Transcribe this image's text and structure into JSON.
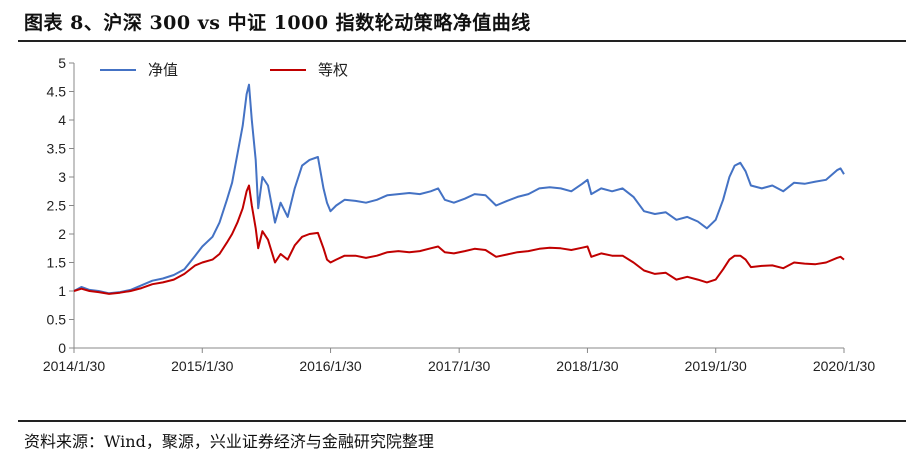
{
  "header": {
    "title": "图表 8、沪深 300 vs 中证 1000 指数轮动策略净值曲线"
  },
  "footer": {
    "source": "资料来源：Wind，聚源，兴业证券经济与金融研究院整理"
  },
  "chart_data": {
    "type": "line",
    "title": "",
    "xlabel": "",
    "ylabel": "",
    "ylim": [
      0,
      5
    ],
    "yticks": [
      "0",
      "0.5",
      "1",
      "1.5",
      "2",
      "2.5",
      "3",
      "3.5",
      "4",
      "4.5",
      "5"
    ],
    "xticks": [
      "2014/1/30",
      "2015/1/30",
      "2016/1/30",
      "2017/1/30",
      "2018/1/30",
      "2019/1/30",
      "2020/1/30"
    ],
    "xlim": [
      "2014/1/30",
      "2020/1/30"
    ],
    "grid": false,
    "legend_position": "top-left",
    "series": [
      {
        "name": "净值",
        "color": "#4472C4",
        "points": [
          [
            "2014/1/30",
            1.0
          ],
          [
            "2014/2/20",
            1.07
          ],
          [
            "2014/3/15",
            1.02
          ],
          [
            "2014/4/10",
            1.0
          ],
          [
            "2014/5/10",
            0.96
          ],
          [
            "2014/6/10",
            0.98
          ],
          [
            "2014/7/10",
            1.02
          ],
          [
            "2014/8/10",
            1.1
          ],
          [
            "2014/9/10",
            1.18
          ],
          [
            "2014/10/10",
            1.22
          ],
          [
            "2014/11/10",
            1.28
          ],
          [
            "2014/12/10",
            1.38
          ],
          [
            "2015/1/10",
            1.62
          ],
          [
            "2015/1/30",
            1.78
          ],
          [
            "2015/2/28",
            1.95
          ],
          [
            "2015/3/20",
            2.2
          ],
          [
            "2015/4/10",
            2.6
          ],
          [
            "2015/4/25",
            2.9
          ],
          [
            "2015/5/10",
            3.4
          ],
          [
            "2015/5/25",
            3.9
          ],
          [
            "2015/6/5",
            4.45
          ],
          [
            "2015/6/12",
            4.62
          ],
          [
            "2015/6/20",
            4.0
          ],
          [
            "2015/7/1",
            3.3
          ],
          [
            "2015/7/8",
            2.45
          ],
          [
            "2015/7/20",
            3.0
          ],
          [
            "2015/8/5",
            2.85
          ],
          [
            "2015/8/25",
            2.2
          ],
          [
            "2015/9/10",
            2.55
          ],
          [
            "2015/9/30",
            2.3
          ],
          [
            "2015/10/20",
            2.8
          ],
          [
            "2015/11/10",
            3.2
          ],
          [
            "2015/12/1",
            3.3
          ],
          [
            "2015/12/25",
            3.35
          ],
          [
            "2016/1/10",
            2.8
          ],
          [
            "2016/1/20",
            2.55
          ],
          [
            "2016/1/30",
            2.4
          ],
          [
            "2016/2/15",
            2.5
          ],
          [
            "2016/3/10",
            2.6
          ],
          [
            "2016/4/10",
            2.58
          ],
          [
            "2016/5/10",
            2.55
          ],
          [
            "2016/6/10",
            2.6
          ],
          [
            "2016/7/10",
            2.68
          ],
          [
            "2016/8/10",
            2.7
          ],
          [
            "2016/9/10",
            2.72
          ],
          [
            "2016/10/10",
            2.7
          ],
          [
            "2016/11/10",
            2.75
          ],
          [
            "2016/12/1",
            2.8
          ],
          [
            "2016/12/20",
            2.6
          ],
          [
            "2017/1/15",
            2.55
          ],
          [
            "2017/2/15",
            2.62
          ],
          [
            "2017/3/15",
            2.7
          ],
          [
            "2017/4/15",
            2.68
          ],
          [
            "2017/5/15",
            2.5
          ],
          [
            "2017/6/15",
            2.58
          ],
          [
            "2017/7/15",
            2.65
          ],
          [
            "2017/8/15",
            2.7
          ],
          [
            "2017/9/15",
            2.8
          ],
          [
            "2017/10/15",
            2.82
          ],
          [
            "2017/11/15",
            2.8
          ],
          [
            "2017/12/15",
            2.75
          ],
          [
            "2018/1/15",
            2.88
          ],
          [
            "2018/1/30",
            2.95
          ],
          [
            "2018/2/10",
            2.7
          ],
          [
            "2018/3/10",
            2.8
          ],
          [
            "2018/4/10",
            2.75
          ],
          [
            "2018/5/10",
            2.8
          ],
          [
            "2018/6/10",
            2.65
          ],
          [
            "2018/7/10",
            2.4
          ],
          [
            "2018/8/10",
            2.35
          ],
          [
            "2018/9/10",
            2.38
          ],
          [
            "2018/10/10",
            2.25
          ],
          [
            "2018/11/10",
            2.3
          ],
          [
            "2018/12/10",
            2.22
          ],
          [
            "2019/1/5",
            2.1
          ],
          [
            "2019/1/30",
            2.25
          ],
          [
            "2019/2/20",
            2.6
          ],
          [
            "2019/3/10",
            3.0
          ],
          [
            "2019/3/25",
            3.2
          ],
          [
            "2019/4/10",
            3.25
          ],
          [
            "2019/4/25",
            3.1
          ],
          [
            "2019/5/10",
            2.85
          ],
          [
            "2019/6/10",
            2.8
          ],
          [
            "2019/7/10",
            2.85
          ],
          [
            "2019/8/10",
            2.75
          ],
          [
            "2019/9/10",
            2.9
          ],
          [
            "2019/10/10",
            2.88
          ],
          [
            "2019/11/10",
            2.92
          ],
          [
            "2019/12/10",
            2.95
          ],
          [
            "2020/1/10",
            3.12
          ],
          [
            "2020/1/20",
            3.15
          ],
          [
            "2020/1/30",
            3.05
          ]
        ]
      },
      {
        "name": "等权",
        "color": "#C00000",
        "points": [
          [
            "2014/1/30",
            1.0
          ],
          [
            "2014/2/20",
            1.04
          ],
          [
            "2014/3/15",
            1.0
          ],
          [
            "2014/4/10",
            0.98
          ],
          [
            "2014/5/10",
            0.95
          ],
          [
            "2014/6/10",
            0.97
          ],
          [
            "2014/7/10",
            1.0
          ],
          [
            "2014/8/10",
            1.05
          ],
          [
            "2014/9/10",
            1.12
          ],
          [
            "2014/10/10",
            1.15
          ],
          [
            "2014/11/10",
            1.2
          ],
          [
            "2014/12/10",
            1.3
          ],
          [
            "2015/1/10",
            1.45
          ],
          [
            "2015/1/30",
            1.5
          ],
          [
            "2015/2/28",
            1.55
          ],
          [
            "2015/3/20",
            1.65
          ],
          [
            "2015/4/10",
            1.85
          ],
          [
            "2015/4/25",
            2.0
          ],
          [
            "2015/5/10",
            2.2
          ],
          [
            "2015/5/25",
            2.45
          ],
          [
            "2015/6/5",
            2.75
          ],
          [
            "2015/6/12",
            2.85
          ],
          [
            "2015/6/20",
            2.5
          ],
          [
            "2015/7/1",
            2.1
          ],
          [
            "2015/7/8",
            1.75
          ],
          [
            "2015/7/20",
            2.05
          ],
          [
            "2015/8/5",
            1.9
          ],
          [
            "2015/8/25",
            1.5
          ],
          [
            "2015/9/10",
            1.65
          ],
          [
            "2015/9/30",
            1.55
          ],
          [
            "2015/10/20",
            1.8
          ],
          [
            "2015/11/10",
            1.95
          ],
          [
            "2015/12/1",
            2.0
          ],
          [
            "2015/12/25",
            2.02
          ],
          [
            "2016/1/10",
            1.75
          ],
          [
            "2016/1/20",
            1.55
          ],
          [
            "2016/1/30",
            1.5
          ],
          [
            "2016/2/15",
            1.55
          ],
          [
            "2016/3/10",
            1.62
          ],
          [
            "2016/4/10",
            1.62
          ],
          [
            "2016/5/10",
            1.58
          ],
          [
            "2016/6/10",
            1.62
          ],
          [
            "2016/7/10",
            1.68
          ],
          [
            "2016/8/10",
            1.7
          ],
          [
            "2016/9/10",
            1.68
          ],
          [
            "2016/10/10",
            1.7
          ],
          [
            "2016/11/10",
            1.75
          ],
          [
            "2016/12/1",
            1.78
          ],
          [
            "2016/12/20",
            1.68
          ],
          [
            "2017/1/15",
            1.66
          ],
          [
            "2017/2/15",
            1.7
          ],
          [
            "2017/3/15",
            1.74
          ],
          [
            "2017/4/15",
            1.72
          ],
          [
            "2017/5/15",
            1.6
          ],
          [
            "2017/6/15",
            1.64
          ],
          [
            "2017/7/15",
            1.68
          ],
          [
            "2017/8/15",
            1.7
          ],
          [
            "2017/9/15",
            1.74
          ],
          [
            "2017/10/15",
            1.76
          ],
          [
            "2017/11/15",
            1.75
          ],
          [
            "2017/12/15",
            1.72
          ],
          [
            "2018/1/15",
            1.76
          ],
          [
            "2018/1/30",
            1.78
          ],
          [
            "2018/2/10",
            1.6
          ],
          [
            "2018/3/10",
            1.66
          ],
          [
            "2018/4/10",
            1.62
          ],
          [
            "2018/5/10",
            1.62
          ],
          [
            "2018/6/10",
            1.5
          ],
          [
            "2018/7/10",
            1.36
          ],
          [
            "2018/8/10",
            1.3
          ],
          [
            "2018/9/10",
            1.32
          ],
          [
            "2018/10/10",
            1.2
          ],
          [
            "2018/11/10",
            1.25
          ],
          [
            "2018/12/10",
            1.2
          ],
          [
            "2019/1/5",
            1.15
          ],
          [
            "2019/1/30",
            1.2
          ],
          [
            "2019/2/20",
            1.38
          ],
          [
            "2019/3/10",
            1.55
          ],
          [
            "2019/3/25",
            1.62
          ],
          [
            "2019/4/10",
            1.62
          ],
          [
            "2019/4/25",
            1.55
          ],
          [
            "2019/5/10",
            1.42
          ],
          [
            "2019/6/10",
            1.44
          ],
          [
            "2019/7/10",
            1.45
          ],
          [
            "2019/8/10",
            1.4
          ],
          [
            "2019/9/10",
            1.5
          ],
          [
            "2019/10/10",
            1.48
          ],
          [
            "2019/11/10",
            1.47
          ],
          [
            "2019/12/10",
            1.5
          ],
          [
            "2020/1/10",
            1.58
          ],
          [
            "2020/1/20",
            1.6
          ],
          [
            "2020/1/30",
            1.55
          ]
        ]
      }
    ]
  }
}
